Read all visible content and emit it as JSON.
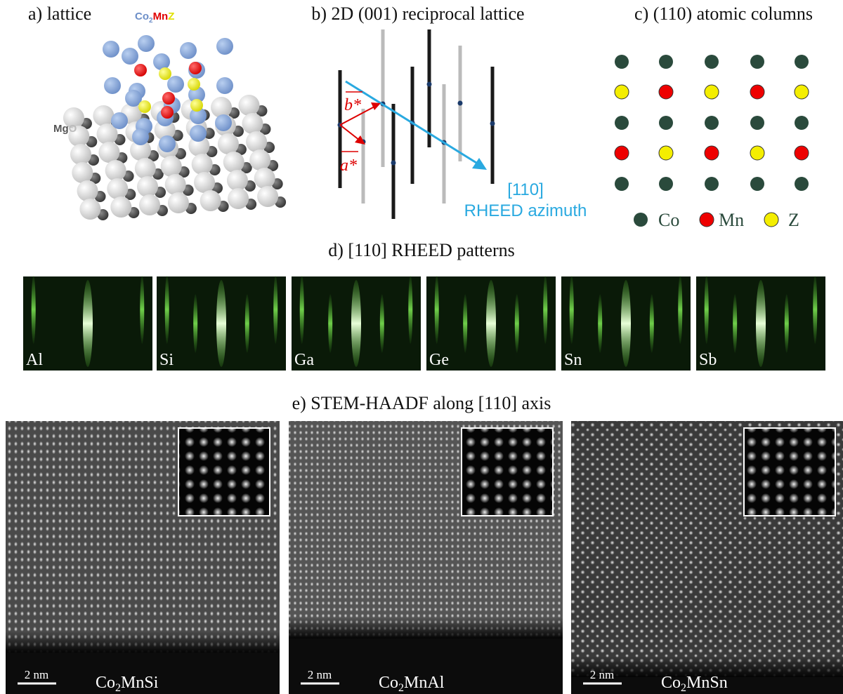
{
  "panel_a": {
    "title": "a) lattice",
    "film_label": [
      "Co",
      "2",
      "Mn",
      "Z"
    ],
    "substrate_label": [
      "Mg",
      "O"
    ]
  },
  "panel_b": {
    "title": "b) 2D (001) reciprocal lattice",
    "vector_b": "b*",
    "vector_a": "a*",
    "direction": "[110]",
    "direction_caption": "RHEED azimuth"
  },
  "panel_c": {
    "title": "c) (110) atomic columns",
    "legend": [
      "Co",
      "Mn",
      "Z"
    ]
  },
  "panel_d": {
    "title": "d) [110] RHEED patterns",
    "patterns": [
      "Al",
      "Si",
      "Ga",
      "Ge",
      "Sn",
      "Sb"
    ]
  },
  "panel_e": {
    "title": "e) STEM-HAADF along [110] axis",
    "images": [
      {
        "scale": "2 nm",
        "formula": [
          "Co",
          "2",
          "MnSi"
        ]
      },
      {
        "scale": "2 nm",
        "formula": [
          "Co",
          "2",
          "MnAl"
        ]
      },
      {
        "scale": "2 nm",
        "formula": [
          "Co",
          "2",
          "MnSn"
        ]
      }
    ]
  }
}
